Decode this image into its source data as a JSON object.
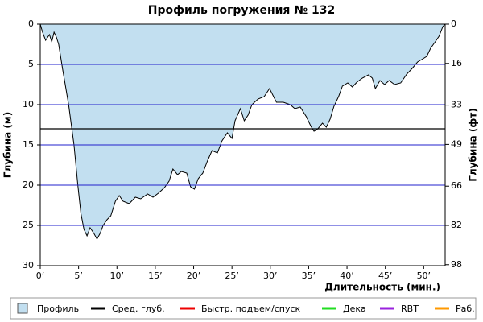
{
  "chart_data": {
    "type": "area",
    "title": "Профиль погружения № 132",
    "x_label": "Длительность (мин.)",
    "y_label": "Глубина (м)",
    "y2_label": "Глубина (фт)",
    "xlim": [
      0,
      52.8
    ],
    "ylim": [
      30,
      0
    ],
    "y2lim": [
      98.4,
      0
    ],
    "xticks": [
      {
        "value": 0,
        "label": "0’"
      },
      {
        "value": 5,
        "label": "5’"
      },
      {
        "value": 10,
        "label": "10’"
      },
      {
        "value": 15,
        "label": "15’"
      },
      {
        "value": 20,
        "label": "20’"
      },
      {
        "value": 25,
        "label": "25’"
      },
      {
        "value": 30,
        "label": "30’"
      },
      {
        "value": 35,
        "label": "35’"
      },
      {
        "value": 40,
        "label": "40’"
      },
      {
        "value": 45,
        "label": "45’"
      },
      {
        "value": 50,
        "label": "50’"
      }
    ],
    "yticks": [
      0,
      5,
      10,
      15,
      20,
      25,
      30
    ],
    "y2ticks": [
      0,
      16,
      33,
      49,
      66,
      82,
      98
    ],
    "grid": true,
    "grid_color": "#2222cc",
    "avg_depth": 13,
    "x": [
      0,
      0.3,
      0.7,
      1.2,
      1.5,
      1.8,
      2.1,
      2.4,
      2.9,
      3.7,
      4.4,
      4.9,
      5.3,
      5.7,
      6.1,
      6.5,
      7.0,
      7.4,
      7.8,
      8.2,
      8.7,
      9.2,
      9.8,
      10.3,
      10.8,
      11.6,
      12.4,
      13.1,
      14.0,
      14.7,
      15.4,
      16.2,
      16.8,
      17.3,
      17.9,
      18.4,
      19.1,
      19.6,
      20.1,
      20.6,
      21.2,
      21.8,
      22.4,
      23.1,
      23.7,
      24.4,
      25.0,
      25.4,
      26.1,
      26.6,
      27.1,
      27.6,
      28.4,
      29.2,
      29.9,
      30.8,
      31.7,
      32.6,
      33.2,
      33.9,
      34.7,
      35.3,
      35.7,
      36.2,
      36.8,
      37.3,
      37.8,
      38.3,
      38.9,
      39.4,
      40.1,
      40.7,
      41.3,
      42.0,
      42.8,
      43.3,
      43.7,
      44.3,
      44.9,
      45.5,
      46.2,
      47.0,
      47.8,
      48.5,
      49.2,
      49.9,
      50.4,
      50.9,
      51.5,
      52.0,
      52.5,
      52.8
    ],
    "series": [
      {
        "name": "Профиль",
        "color": "#c2dff0",
        "values": [
          0,
          1,
          2,
          1.3,
          2.2,
          1,
          1.6,
          2.5,
          5.5,
          10,
          15,
          20,
          23.5,
          25.5,
          26.3,
          25.3,
          26,
          26.7,
          26,
          25,
          24.3,
          23.8,
          22,
          21.3,
          22,
          22.3,
          21.5,
          21.7,
          21.1,
          21.5,
          21,
          20.3,
          19.5,
          18,
          18.7,
          18.3,
          18.5,
          20.2,
          20.5,
          19.2,
          18.5,
          17,
          15.7,
          16,
          14.5,
          13.5,
          14.2,
          12,
          10.5,
          12,
          11.3,
          10,
          9.3,
          9,
          8,
          9.7,
          9.7,
          10,
          10.5,
          10.3,
          11.5,
          12.7,
          13.3,
          13,
          12.3,
          12.8,
          11.8,
          10.2,
          9,
          7.7,
          7.3,
          7.8,
          7.2,
          6.7,
          6.3,
          6.7,
          8,
          7,
          7.5,
          7,
          7.5,
          7.3,
          6.2,
          5.5,
          4.7,
          4.3,
          4,
          3,
          2.2,
          1.5,
          0.3,
          0
        ]
      }
    ],
    "legend": [
      {
        "name": "Профиль",
        "color": "#c2dff0",
        "kind": "box"
      },
      {
        "name": "Сред. глуб.",
        "color": "#000000",
        "kind": "line"
      },
      {
        "name": "Быстр. подъем/спуск",
        "color": "#ee0000",
        "kind": "line"
      },
      {
        "name": "Дека",
        "color": "#22dd22",
        "kind": "line"
      },
      {
        "name": "RBT",
        "color": "#9922dd",
        "kind": "line"
      },
      {
        "name": "Раб.",
        "color": "#ff9900",
        "kind": "line"
      }
    ]
  }
}
